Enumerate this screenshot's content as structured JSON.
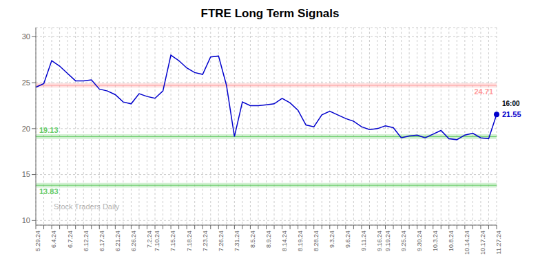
{
  "chart_data": {
    "type": "line",
    "title": "FTRE Long Term Signals",
    "categories": [
      "5.29.24",
      null,
      "6.4.24",
      null,
      "6.7.24",
      null,
      "6.12.24",
      null,
      "6.17.24",
      null,
      "6.21.24",
      null,
      "6.26.24",
      null,
      "7.2.24",
      "7.10.24",
      null,
      "7.15.24",
      null,
      "7.18.24",
      null,
      "7.23.24",
      null,
      "7.26.24",
      null,
      "7.31.24",
      null,
      "8.5.24",
      null,
      "8.9.24",
      null,
      "8.14.24",
      null,
      "8.19.24",
      null,
      "8.28.24",
      null,
      "9.3.24",
      null,
      "9.6.24",
      null,
      "9.11.24",
      null,
      "9.16.24",
      "9.19.24",
      null,
      "9.25.24",
      null,
      "9.30.24",
      null,
      "10.3.24",
      null,
      "10.8.24",
      null,
      "10.14.24",
      null,
      "10.17.24",
      null,
      "11.27.24"
    ],
    "values": [
      24.5,
      24.9,
      27.4,
      26.8,
      26.0,
      25.2,
      25.2,
      25.3,
      24.3,
      24.1,
      23.7,
      22.9,
      22.7,
      23.8,
      23.5,
      23.3,
      24.1,
      28.0,
      27.4,
      26.6,
      26.1,
      25.9,
      27.8,
      27.9,
      24.71,
      19.13,
      22.9,
      22.5,
      22.5,
      22.6,
      22.7,
      23.3,
      22.8,
      22.0,
      20.4,
      20.2,
      21.5,
      21.9,
      21.5,
      21.1,
      20.8,
      20.2,
      19.9,
      20.0,
      20.3,
      20.1,
      19.0,
      19.2,
      19.3,
      19.0,
      19.4,
      19.8,
      18.9,
      18.8,
      19.3,
      19.5,
      19.0,
      18.9,
      21.55
    ],
    "color": "#0000cc",
    "ylim": [
      9.5,
      31.0
    ],
    "yticks": [
      10,
      15,
      20,
      25,
      30
    ],
    "grid": true,
    "reference_lines": [
      {
        "y": 24.71,
        "color": "#ff9999"
      },
      {
        "y": 19.13,
        "color": "#66cc66"
      },
      {
        "y": 13.83,
        "color": "#66cc66"
      }
    ],
    "last_point": {
      "label": "16:00",
      "value": 21.55
    },
    "annotations": [
      "Stock Traders Daily"
    ]
  }
}
